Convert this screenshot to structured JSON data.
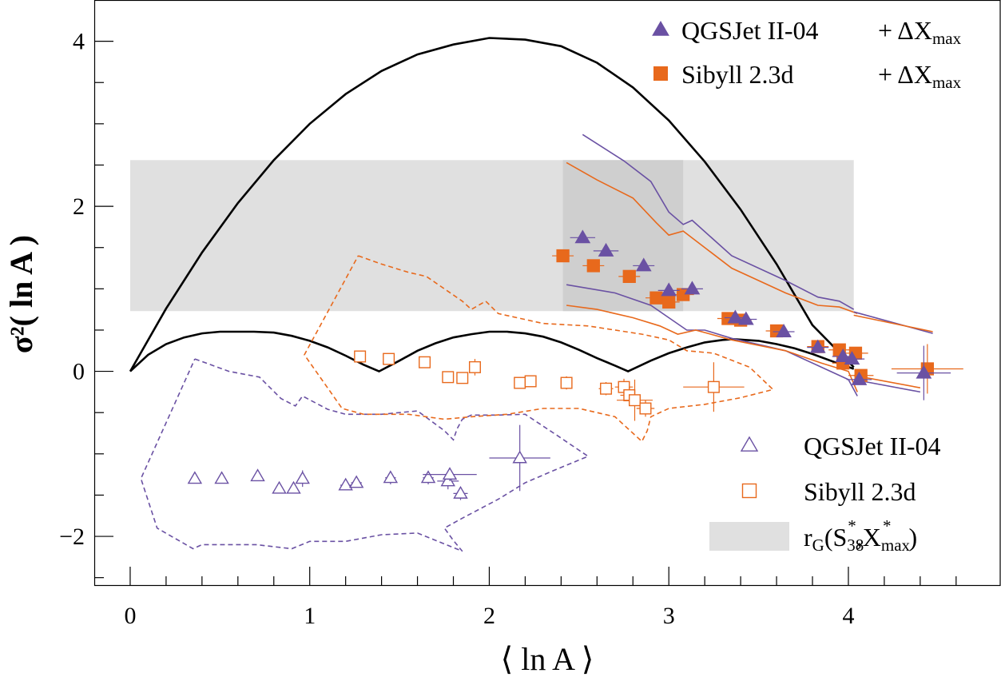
{
  "chart_data": {
    "type": "scatter",
    "xlabel": "⟨ ln A ⟩",
    "ylabel": "σ²( ln A )",
    "xlim": [
      -0.2,
      4.85
    ],
    "ylim": [
      -2.6,
      4.5
    ],
    "xticks": [
      0,
      1,
      2,
      3,
      4
    ],
    "yticks": [
      -2,
      0,
      2,
      4
    ],
    "xtick_labels": [
      "0",
      "1",
      "2",
      "3",
      "4"
    ],
    "ytick_labels": [
      "−2",
      "0",
      "2",
      "4"
    ],
    "colors": {
      "qgsjet": "#6a51a3",
      "sibyll": "#e8691c",
      "band": "#e0e0e0",
      "band_dark": "#cfcfcf",
      "boundary": "#000000"
    },
    "legend_top": [
      {
        "label": "QGSJet II-04",
        "suffix": "+ ΔX",
        "subscript": "max",
        "marker": "filled-triangle",
        "color": "#6a51a3"
      },
      {
        "label": "Sibyll 2.3d",
        "suffix": "+ ΔX",
        "subscript": "max",
        "marker": "filled-square",
        "color": "#e8691c"
      }
    ],
    "legend_bottom": [
      {
        "label": "QGSJet II-04",
        "marker": "open-triangle",
        "color": "#6a51a3"
      },
      {
        "label": "Sibyll 2.3d",
        "marker": "open-square",
        "color": "#e8691c"
      },
      {
        "label_parts": [
          "r",
          "G",
          "(S",
          "38",
          "*",
          ",X",
          "max",
          "*",
          ")"
        ],
        "marker": "band",
        "color": "#e0e0e0"
      }
    ],
    "band": {
      "x": [
        0.0,
        4.03
      ],
      "y": [
        0.73,
        2.56
      ]
    },
    "band_dark": {
      "x": [
        2.41,
        3.08
      ],
      "y": [
        0.73,
        2.56
      ]
    },
    "series": [
      {
        "name": "QGSJet II-04 + ΔXmax",
        "marker": "filled-triangle",
        "color": "#6a51a3",
        "points": [
          {
            "x": 2.52,
            "y": 1.62,
            "ex": 0.07,
            "ey": 0.05
          },
          {
            "x": 2.65,
            "y": 1.46,
            "ex": 0.07,
            "ey": 0.05
          },
          {
            "x": 2.86,
            "y": 1.28,
            "ex": 0.06,
            "ey": 0.05
          },
          {
            "x": 3.0,
            "y": 0.98,
            "ex": 0.06,
            "ey": 0.05
          },
          {
            "x": 3.13,
            "y": 1.0,
            "ex": 0.06,
            "ey": 0.05
          },
          {
            "x": 3.37,
            "y": 0.65,
            "ex": 0.06,
            "ey": 0.05
          },
          {
            "x": 3.43,
            "y": 0.63,
            "ex": 0.06,
            "ey": 0.05
          },
          {
            "x": 3.64,
            "y": 0.48,
            "ex": 0.06,
            "ey": 0.05
          },
          {
            "x": 3.83,
            "y": 0.29,
            "ex": 0.06,
            "ey": 0.05
          },
          {
            "x": 3.97,
            "y": 0.18,
            "ex": 0.06,
            "ey": 0.05
          },
          {
            "x": 4.02,
            "y": 0.15,
            "ex": 0.07,
            "ey": 0.06
          },
          {
            "x": 4.06,
            "y": -0.1,
            "ex": 0.07,
            "ey": 0.06
          },
          {
            "x": 4.42,
            "y": -0.02,
            "ex": 0.15,
            "ey": 0.33
          }
        ]
      },
      {
        "name": "Sibyll 2.3d + ΔXmax",
        "marker": "filled-square",
        "color": "#e8691c",
        "points": [
          {
            "x": 2.41,
            "y": 1.4,
            "ex": 0.06,
            "ey": 0.05
          },
          {
            "x": 2.58,
            "y": 1.28,
            "ex": 0.06,
            "ey": 0.05
          },
          {
            "x": 2.78,
            "y": 1.15,
            "ex": 0.06,
            "ey": 0.05
          },
          {
            "x": 2.93,
            "y": 0.89,
            "ex": 0.06,
            "ey": 0.05
          },
          {
            "x": 3.0,
            "y": 0.84,
            "ex": 0.06,
            "ey": 0.05
          },
          {
            "x": 3.08,
            "y": 0.93,
            "ex": 0.06,
            "ey": 0.05
          },
          {
            "x": 3.33,
            "y": 0.64,
            "ex": 0.06,
            "ey": 0.05
          },
          {
            "x": 3.4,
            "y": 0.62,
            "ex": 0.06,
            "ey": 0.05
          },
          {
            "x": 3.6,
            "y": 0.49,
            "ex": 0.06,
            "ey": 0.05
          },
          {
            "x": 3.83,
            "y": 0.3,
            "ex": 0.06,
            "ey": 0.05
          },
          {
            "x": 3.95,
            "y": 0.26,
            "ex": 0.06,
            "ey": 0.05
          },
          {
            "x": 3.97,
            "y": 0.1,
            "ex": 0.06,
            "ey": 0.05
          },
          {
            "x": 4.04,
            "y": 0.22,
            "ex": 0.07,
            "ey": 0.06
          },
          {
            "x": 4.07,
            "y": -0.05,
            "ex": 0.07,
            "ey": 0.06
          },
          {
            "x": 4.44,
            "y": 0.03,
            "ex": 0.2,
            "ey": 0.3
          }
        ]
      },
      {
        "name": "QGSJet II-04",
        "marker": "open-triangle",
        "color": "#6a51a3",
        "points": [
          {
            "x": 0.36,
            "y": -1.3,
            "ex": 0.02,
            "ey": 0.05
          },
          {
            "x": 0.51,
            "y": -1.3,
            "ex": 0.02,
            "ey": 0.05
          },
          {
            "x": 0.71,
            "y": -1.27,
            "ex": 0.02,
            "ey": 0.05
          },
          {
            "x": 0.83,
            "y": -1.42,
            "ex": 0.02,
            "ey": 0.05
          },
          {
            "x": 0.91,
            "y": -1.42,
            "ex": 0.02,
            "ey": 0.05
          },
          {
            "x": 0.96,
            "y": -1.3,
            "ex": 0.02,
            "ey": 0.1
          },
          {
            "x": 1.2,
            "y": -1.38,
            "ex": 0.03,
            "ey": 0.05
          },
          {
            "x": 1.26,
            "y": -1.35,
            "ex": 0.03,
            "ey": 0.05
          },
          {
            "x": 1.45,
            "y": -1.29,
            "ex": 0.03,
            "ey": 0.08
          },
          {
            "x": 1.66,
            "y": -1.29,
            "ex": 0.03,
            "ey": 0.08
          },
          {
            "x": 1.77,
            "y": -1.33,
            "ex": 0.06,
            "ey": 0.1
          },
          {
            "x": 1.78,
            "y": -1.25,
            "ex": 0.15,
            "ey": 0.08
          },
          {
            "x": 1.84,
            "y": -1.48,
            "ex": 0.04,
            "ey": 0.08
          },
          {
            "x": 2.17,
            "y": -1.05,
            "ex": 0.17,
            "ey": 0.4
          }
        ]
      },
      {
        "name": "Sibyll 2.3d",
        "marker": "open-square",
        "color": "#e8691c",
        "points": [
          {
            "x": 1.28,
            "y": 0.18,
            "ex": 0.02,
            "ey": 0.05
          },
          {
            "x": 1.44,
            "y": 0.15,
            "ex": 0.02,
            "ey": 0.05
          },
          {
            "x": 1.64,
            "y": 0.11,
            "ex": 0.02,
            "ey": 0.05
          },
          {
            "x": 1.77,
            "y": -0.07,
            "ex": 0.03,
            "ey": 0.05
          },
          {
            "x": 1.85,
            "y": -0.08,
            "ex": 0.03,
            "ey": 0.05
          },
          {
            "x": 1.92,
            "y": 0.05,
            "ex": 0.03,
            "ey": 0.1
          },
          {
            "x": 2.17,
            "y": -0.14,
            "ex": 0.03,
            "ey": 0.05
          },
          {
            "x": 2.23,
            "y": -0.12,
            "ex": 0.03,
            "ey": 0.05
          },
          {
            "x": 2.43,
            "y": -0.14,
            "ex": 0.03,
            "ey": 0.08
          },
          {
            "x": 2.65,
            "y": -0.21,
            "ex": 0.04,
            "ey": 0.08
          },
          {
            "x": 2.75,
            "y": -0.19,
            "ex": 0.05,
            "ey": 0.1
          },
          {
            "x": 2.78,
            "y": -0.29,
            "ex": 0.05,
            "ey": 0.1
          },
          {
            "x": 2.81,
            "y": -0.35,
            "ex": 0.1,
            "ey": 0.25
          },
          {
            "x": 2.87,
            "y": -0.45,
            "ex": 0.05,
            "ey": 0.1
          },
          {
            "x": 3.25,
            "y": -0.19,
            "ex": 0.17,
            "ey": 0.3
          }
        ]
      }
    ],
    "boundary_upper": {
      "x": [
        0,
        0.2,
        0.4,
        0.6,
        0.8,
        1.0,
        1.2,
        1.4,
        1.6,
        1.8,
        2.0,
        2.2,
        2.4,
        2.6,
        2.8,
        3.0,
        3.2,
        3.4,
        3.6,
        3.8,
        4.03
      ],
      "y": [
        0.0,
        0.76,
        1.44,
        2.04,
        2.56,
        3.0,
        3.36,
        3.64,
        3.84,
        3.96,
        4.04,
        4.02,
        3.94,
        3.74,
        3.44,
        3.04,
        2.54,
        1.96,
        1.3,
        0.56,
        0.05
      ]
    },
    "boundary_lower": {
      "x": [
        0,
        0.1,
        0.2,
        0.3,
        0.4,
        0.5,
        0.6,
        0.69,
        0.8,
        0.9,
        1.0,
        1.1,
        1.2,
        1.3,
        1.386,
        1.5,
        1.6,
        1.7,
        1.8,
        1.9,
        2.0,
        2.1,
        2.2,
        2.3,
        2.4,
        2.5,
        2.6,
        2.7,
        2.773,
        2.9,
        3.0,
        3.1,
        3.2,
        3.3,
        3.36,
        3.5,
        3.6,
        3.7,
        3.8,
        3.9,
        4.03
      ],
      "y": [
        0.0,
        0.2,
        0.33,
        0.41,
        0.46,
        0.48,
        0.48,
        0.48,
        0.47,
        0.43,
        0.37,
        0.29,
        0.19,
        0.08,
        0.0,
        0.13,
        0.25,
        0.34,
        0.41,
        0.45,
        0.48,
        0.48,
        0.46,
        0.42,
        0.35,
        0.26,
        0.16,
        0.07,
        0.0,
        0.13,
        0.22,
        0.29,
        0.35,
        0.38,
        0.39,
        0.37,
        0.33,
        0.28,
        0.21,
        0.13,
        0.03
      ]
    },
    "model_bands": [
      {
        "color": "#6a51a3",
        "x": [
          2.52,
          2.75,
          2.9,
          3.0,
          3.08,
          3.13,
          3.35,
          3.65,
          3.83,
          3.95,
          4.03
        ],
        "y": [
          2.87,
          2.55,
          2.3,
          1.93,
          1.78,
          1.83,
          1.4,
          1.1,
          0.9,
          0.85,
          0.75
        ]
      },
      {
        "color": "#6a51a3",
        "x": [
          2.43,
          2.7,
          2.9,
          3.0,
          3.1,
          3.2,
          3.35,
          3.65,
          3.85,
          4.0,
          4.05
        ],
        "y": [
          1.05,
          0.95,
          0.8,
          0.65,
          0.5,
          0.5,
          0.4,
          0.25,
          0.05,
          -0.1,
          -0.3
        ]
      },
      {
        "color": "#e8691c",
        "x": [
          2.43,
          2.6,
          2.8,
          2.93,
          3.0,
          3.08,
          3.35,
          3.65,
          3.83,
          3.95,
          4.05
        ],
        "y": [
          2.53,
          2.32,
          2.1,
          1.8,
          1.65,
          1.7,
          1.25,
          0.95,
          0.8,
          0.78,
          0.7
        ]
      },
      {
        "color": "#e8691c",
        "x": [
          2.43,
          2.6,
          2.8,
          2.95,
          3.05,
          3.15,
          3.35,
          3.65,
          3.85,
          4.0,
          4.05
        ],
        "y": [
          0.8,
          0.75,
          0.65,
          0.55,
          0.45,
          0.5,
          0.38,
          0.25,
          0.1,
          0.0,
          -0.25
        ]
      },
      {
        "color": "#6a51a3",
        "x": [
          4.03,
          4.47
        ],
        "y": [
          0.72,
          0.46
        ]
      },
      {
        "color": "#6a51a3",
        "x": [
          4.03,
          4.4
        ],
        "y": [
          -0.1,
          -0.25
        ]
      },
      {
        "color": "#e8691c",
        "x": [
          4.03,
          4.47
        ],
        "y": [
          0.68,
          0.48
        ]
      },
      {
        "color": "#e8691c",
        "x": [
          4.03,
          4.4
        ],
        "y": [
          -0.05,
          -0.2
        ]
      }
    ],
    "dashed_contours": [
      {
        "color": "#6a51a3",
        "x": [
          0.36,
          0.55,
          0.72,
          0.84,
          0.92,
          0.96,
          1.1,
          1.2,
          1.4,
          1.6,
          1.75,
          1.8,
          1.82,
          1.85,
          1.9,
          2.05,
          2.2,
          2.38,
          2.55,
          2.36,
          2.2,
          2.05,
          1.85,
          1.75,
          1.8,
          1.85,
          1.6,
          1.4,
          1.2,
          1.0,
          0.9,
          0.7,
          0.4,
          0.35,
          0.15,
          0.06,
          0.36
        ],
        "y": [
          0.15,
          0.0,
          -0.07,
          -0.33,
          -0.42,
          -0.3,
          -0.46,
          -0.52,
          -0.52,
          -0.48,
          -0.72,
          -0.83,
          -0.7,
          -0.58,
          -0.53,
          -0.53,
          -0.52,
          -0.78,
          -1.03,
          -1.2,
          -1.35,
          -1.55,
          -1.78,
          -1.9,
          -2.05,
          -2.18,
          -1.96,
          -1.98,
          -2.06,
          -2.06,
          -2.15,
          -2.1,
          -2.1,
          -2.15,
          -1.9,
          -1.3,
          0.15
        ]
      },
      {
        "color": "#e8691c",
        "x": [
          1.27,
          1.4,
          1.55,
          1.65,
          1.85,
          1.9,
          1.98,
          2.05,
          2.3,
          2.55,
          2.85,
          3.0,
          3.1,
          3.25,
          3.45,
          3.58,
          3.4,
          3.2,
          3.0,
          2.9,
          2.88,
          2.85,
          2.7,
          2.5,
          2.3,
          2.1,
          1.9,
          1.75,
          1.55,
          1.3,
          1.18,
          0.97,
          1.27
        ],
        "y": [
          1.4,
          1.3,
          1.2,
          1.15,
          0.85,
          0.75,
          0.85,
          0.7,
          0.58,
          0.55,
          0.45,
          0.38,
          0.25,
          0.22,
          0.05,
          -0.22,
          -0.32,
          -0.4,
          -0.45,
          -0.55,
          -0.72,
          -0.85,
          -0.55,
          -0.45,
          -0.45,
          -0.52,
          -0.55,
          -0.58,
          -0.52,
          -0.52,
          -0.45,
          0.2,
          1.4
        ]
      }
    ]
  }
}
